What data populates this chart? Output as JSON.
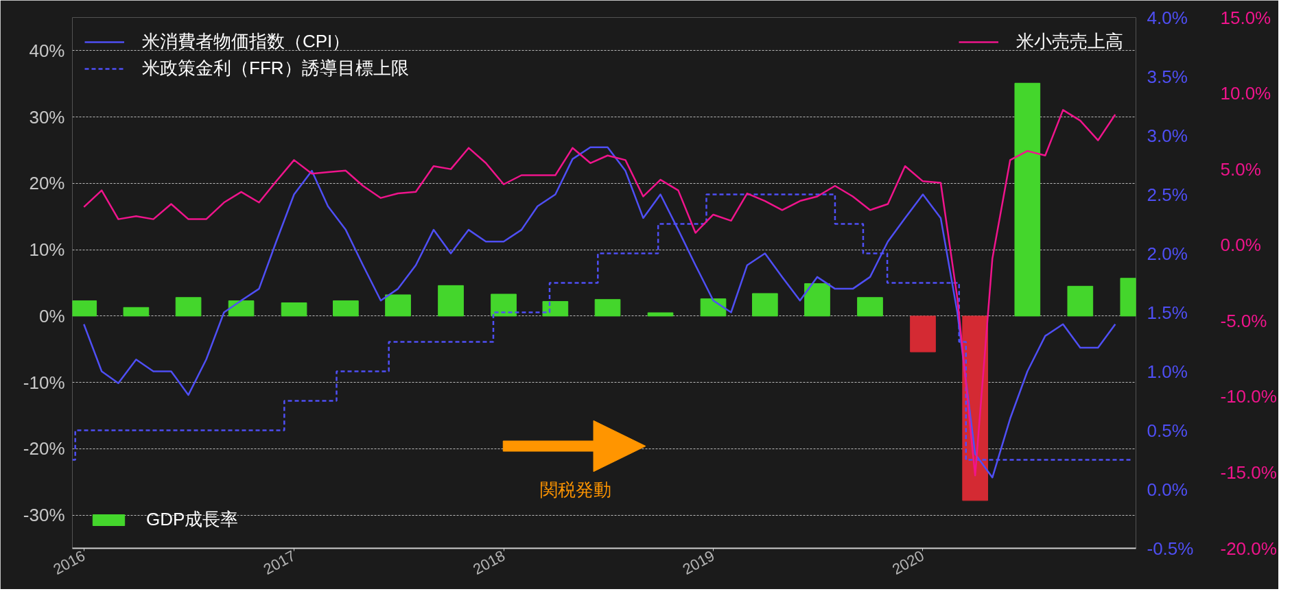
{
  "chart_data": {
    "type": "line",
    "x": [
      "2016-01",
      "2016-02",
      "2016-03",
      "2016-04",
      "2016-05",
      "2016-06",
      "2016-07",
      "2016-08",
      "2016-09",
      "2016-10",
      "2016-11",
      "2016-12",
      "2017-01",
      "2017-02",
      "2017-03",
      "2017-04",
      "2017-05",
      "2017-06",
      "2017-07",
      "2017-08",
      "2017-09",
      "2017-10",
      "2017-11",
      "2017-12",
      "2018-01",
      "2018-02",
      "2018-03",
      "2018-04",
      "2018-05",
      "2018-06",
      "2018-07",
      "2018-08",
      "2018-09",
      "2018-10",
      "2018-11",
      "2018-12",
      "2019-01",
      "2019-02",
      "2019-03",
      "2019-04",
      "2019-05",
      "2019-06",
      "2019-07",
      "2019-08",
      "2019-09",
      "2019-10",
      "2019-11",
      "2019-12",
      "2020-01",
      "2020-02",
      "2020-03",
      "2020-04",
      "2020-05",
      "2020-06",
      "2020-07",
      "2020-08",
      "2020-09",
      "2020-10",
      "2020-11",
      "2020-12"
    ],
    "xlim": [
      "2015-12-12",
      "2021-01-06"
    ],
    "xticks": [
      "2016",
      "2017",
      "2018",
      "2019",
      "2020"
    ],
    "ylim": [
      -35,
      45
    ],
    "yticks": [
      {
        "value": -30,
        "label": "-30%"
      },
      {
        "value": -20,
        "label": "-20%"
      },
      {
        "value": -10,
        "label": "-10%"
      },
      {
        "value": 0,
        "label": "0%"
      },
      {
        "value": 10,
        "label": "10%"
      },
      {
        "value": 20,
        "label": "20%"
      },
      {
        "value": 30,
        "label": "30%"
      },
      {
        "value": 40,
        "label": "40%"
      }
    ],
    "y2lim": [
      -0.5,
      4.0
    ],
    "y2ticks": [
      {
        "value": -0.5,
        "label": "-0.5%"
      },
      {
        "value": 0,
        "label": "0.0%"
      },
      {
        "value": 0.5,
        "label": "0.5%"
      },
      {
        "value": 1.0,
        "label": "1.0%"
      },
      {
        "value": 1.5,
        "label": "1.5%"
      },
      {
        "value": 2.0,
        "label": "2.0%"
      },
      {
        "value": 2.5,
        "label": "2.5%"
      },
      {
        "value": 3.0,
        "label": "3.0%"
      },
      {
        "value": 3.5,
        "label": "3.5%"
      },
      {
        "value": 4.0,
        "label": "4.0%"
      }
    ],
    "y3lim": [
      -20,
      15
    ],
    "y3ticks": [
      {
        "value": -20,
        "label": "-20.0%"
      },
      {
        "value": -15,
        "label": "-15.0%"
      },
      {
        "value": -10,
        "label": "-10.0%"
      },
      {
        "value": -5,
        "label": "-5.0%"
      },
      {
        "value": 0,
        "label": "0.0%"
      },
      {
        "value": 5,
        "label": "5.0%"
      },
      {
        "value": 10,
        "label": "10.0%"
      },
      {
        "value": 15,
        "label": "15.0%"
      }
    ],
    "grid": "y",
    "legend": "top left",
    "annotations": [
      "関税発動"
    ],
    "series": [
      {
        "name": "GDP成長率",
        "type": "bar",
        "x": [
          "2016-01",
          "2016-04",
          "2016-07",
          "2016-10",
          "2017-01",
          "2017-04",
          "2017-07",
          "2017-10",
          "2018-01",
          "2018-04",
          "2018-07",
          "2018-10",
          "2019-01",
          "2019-04",
          "2019-07",
          "2019-10",
          "2020-01",
          "2020-04",
          "2020-07",
          "2020-10",
          "2021-01"
        ],
        "values": [
          2.3,
          1.3,
          2.8,
          2.3,
          2.0,
          2.3,
          3.2,
          4.6,
          3.3,
          2.2,
          2.5,
          0.5,
          2.6,
          3.4,
          4.9,
          2.8,
          -5.4,
          -27.8,
          35.1,
          4.5,
          5.7
        ],
        "colors": [
          "#44d62c",
          "#44d62c",
          "#44d62c",
          "#44d62c",
          "#44d62c",
          "#44d62c",
          "#44d62c",
          "#44d62c",
          "#44d62c",
          "#44d62c",
          "#44d62c",
          "#44d62c",
          "#44d62c",
          "#44d62c",
          "#44d62c",
          "#44d62c",
          "#d42a33",
          "#d42a33",
          "#44d62c",
          "#44d62c",
          "#44d62c"
        ]
      },
      {
        "name": "米消費者物価指数（CPI）",
        "axis": "y2",
        "color": "#4f4ff5",
        "values": [
          1.4,
          1.0,
          0.9,
          1.1,
          1.0,
          1.0,
          0.8,
          1.1,
          1.5,
          1.6,
          1.7,
          2.1,
          2.5,
          2.7,
          2.4,
          2.2,
          1.9,
          1.6,
          1.7,
          1.9,
          2.2,
          2.0,
          2.2,
          2.1,
          2.1,
          2.2,
          2.4,
          2.5,
          2.8,
          2.9,
          2.9,
          2.7,
          2.3,
          2.5,
          2.2,
          1.9,
          1.6,
          1.5,
          1.9,
          2.0,
          1.8,
          1.6,
          1.8,
          1.7,
          1.7,
          1.8,
          2.1,
          2.3,
          2.5,
          2.3,
          1.5,
          0.3,
          0.1,
          0.6,
          1.0,
          1.3,
          1.4,
          1.2,
          1.2,
          1.4
        ]
      },
      {
        "name": "米政策金利（FFR）誘導目標上限",
        "type": "step",
        "axis": "y2",
        "line_style": "dashed",
        "color": "#4f4ff5",
        "x": [
          "2015-12-12",
          "2015-12-17",
          "2016-12-15",
          "2017-03-16",
          "2017-06-15",
          "2017-12-14",
          "2018-03-22",
          "2018-06-14",
          "2018-09-27",
          "2018-12-20",
          "2019-08-01",
          "2019-09-19",
          "2019-10-31",
          "2020-03-04",
          "2020-03-16",
          "2020-12-31"
        ],
        "values": [
          0.25,
          0.5,
          0.75,
          1.0,
          1.25,
          1.5,
          1.75,
          2.0,
          2.25,
          2.5,
          2.25,
          2.0,
          1.75,
          1.25,
          0.25,
          0.25
        ]
      },
      {
        "name": "米小売売上高",
        "axis": "y3",
        "color": "#f0148c",
        "values": [
          2.5,
          3.6,
          1.7,
          1.9,
          1.7,
          2.7,
          1.7,
          1.7,
          2.8,
          3.5,
          2.8,
          4.2,
          5.6,
          4.7,
          4.8,
          4.9,
          3.9,
          3.1,
          3.4,
          3.5,
          5.2,
          5.0,
          6.4,
          5.4,
          4.0,
          4.6,
          4.6,
          4.6,
          6.4,
          5.4,
          5.9,
          5.6,
          3.2,
          4.3,
          3.6,
          0.8,
          2.0,
          1.6,
          3.4,
          2.9,
          2.3,
          2.9,
          3.2,
          3.9,
          3.2,
          2.3,
          2.7,
          5.2,
          4.2,
          4.1,
          -3.5,
          -15.2,
          -0.9,
          5.6,
          6.2,
          5.9,
          8.9,
          8.2,
          6.9,
          8.6
        ]
      }
    ]
  }
}
